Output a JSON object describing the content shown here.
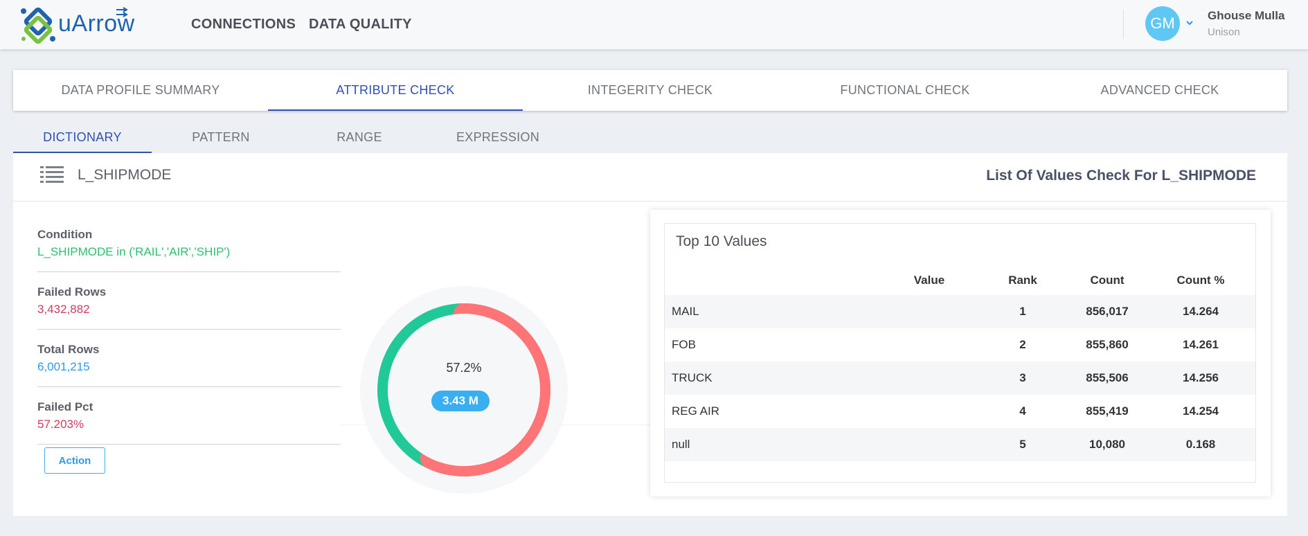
{
  "app": {
    "logo_text": "uArrow",
    "nav": [
      "CONNECTIONS",
      "DATA QUALITY"
    ],
    "user": {
      "initials": "GM",
      "name": "Ghouse Mulla",
      "org": "Unison"
    }
  },
  "main_tabs": [
    "DATA PROFILE SUMMARY",
    "ATTRIBUTE CHECK",
    "INTEGERITY CHECK",
    "FUNCTIONAL CHECK",
    "ADVANCED CHECK"
  ],
  "main_tab_active": "ATTRIBUTE CHECK",
  "sub_tabs": [
    "DICTIONARY",
    "PATTERN",
    "RANGE",
    "EXPRESSION"
  ],
  "sub_tab_active": "DICTIONARY",
  "card": {
    "column_name": "L_SHIPMODE",
    "title": "List Of Values Check For L_SHIPMODE"
  },
  "stats": [
    {
      "label": "Condition",
      "value": "L_SHIPMODE in ('RAIL','AIR','SHIP')",
      "color": "#2dbf6e"
    },
    {
      "label": "Failed Rows",
      "value": "3,432,882",
      "color": "#d23a5e"
    },
    {
      "label": "Total Rows",
      "value": "6,001,215",
      "color": "#2d9ae8"
    },
    {
      "label": "Failed Pct",
      "value": "57.203%",
      "color": "#d23a5e"
    }
  ],
  "action_label": "Action",
  "donut": {
    "failed_fraction": 0.572,
    "failed_color": "#ff7476",
    "passed_color": "#20c997",
    "percent_label": "57.2%",
    "badge_label": "3.43 M"
  },
  "top_values": {
    "title": "Top 10 Values",
    "columns": [
      "Value",
      "Rank",
      "Count",
      "Count %"
    ],
    "rows": [
      {
        "value": "MAIL",
        "rank": "1",
        "count": "856,017",
        "pct": "14.264"
      },
      {
        "value": "FOB",
        "rank": "2",
        "count": "855,860",
        "pct": "14.261"
      },
      {
        "value": "TRUCK",
        "rank": "3",
        "count": "855,506",
        "pct": "14.256"
      },
      {
        "value": "REG AIR",
        "rank": "4",
        "count": "855,419",
        "pct": "14.254"
      },
      {
        "value": "null",
        "rank": "5",
        "count": "10,080",
        "pct": "0.168"
      }
    ]
  }
}
